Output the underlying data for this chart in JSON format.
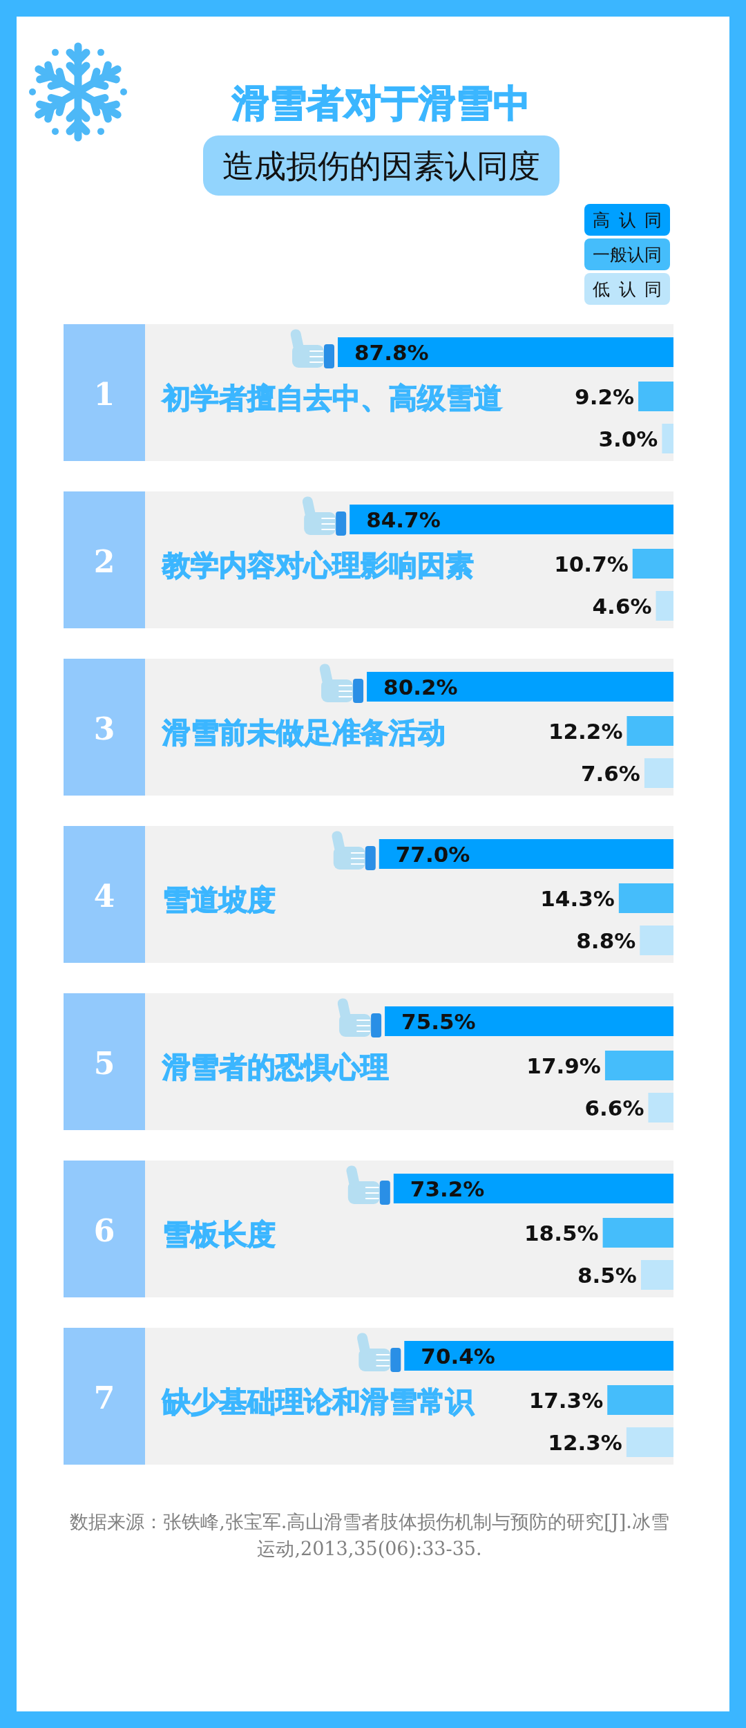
{
  "chart_data": {
    "type": "bar",
    "orientation": "horizontal",
    "title": "滑雪者对于滑雪中",
    "subtitle": "造成损伤的因素认同度",
    "categories": [
      "初学者擅自去中、高级雪道",
      "教学内容对心理影响因素",
      "滑雪前未做足准备活动",
      "雪道坡度",
      "滑雪者的恐惧心理",
      "雪板长度",
      "缺少基础理论和滑雪常识"
    ],
    "series": [
      {
        "name": "高认同",
        "color": "#00a0ff",
        "values": [
          87.8,
          84.7,
          80.2,
          77.0,
          75.5,
          73.2,
          70.4
        ],
        "value_labels": [
          "87.8%",
          "84.7%",
          "80.2%",
          "77.0%",
          "75.5%",
          "73.2%",
          "70.4%"
        ]
      },
      {
        "name": "一般认同",
        "color": "#45bdfb",
        "values": [
          9.2,
          10.7,
          12.2,
          14.3,
          17.9,
          18.5,
          17.3
        ],
        "value_labels": [
          "9.2%",
          "10.7%",
          "12.2%",
          "14.3%",
          "17.9%",
          "18.5%",
          "17.3%"
        ]
      },
      {
        "name": "低认同",
        "color": "#bde5fb",
        "values": [
          3.0,
          4.6,
          7.6,
          8.8,
          6.6,
          8.5,
          12.3
        ],
        "value_labels": [
          "3.0%",
          "4.6%",
          "7.6%",
          "8.8%",
          "6.6%",
          "8.5%",
          "12.3%"
        ]
      }
    ],
    "legend": "top right",
    "annotations": [
      "1",
      "2",
      "3",
      "4",
      "5",
      "6",
      "7",
      "数据来源：张铁峰,张宝军.高山滑雪者肢体损伤机制与预防的研究[J].冰雪运动,2013,35(06):33-35."
    ]
  }
}
